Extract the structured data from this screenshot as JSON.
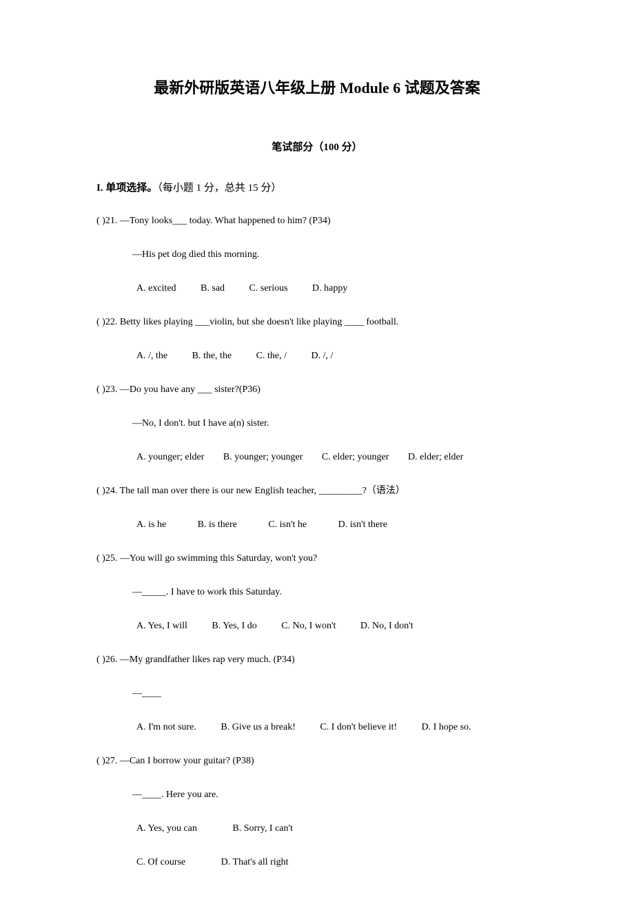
{
  "title": "最新外研版英语八年级上册 Module 6 试题及答案",
  "subtitle": "笔试部分（100 分）",
  "section": {
    "roman": "I.",
    "label": "单项选择。",
    "note": "（每小题 1 分，总共 15 分）"
  },
  "questions": [
    {
      "num": "(    )21.",
      "text": "—Tony looks___ today. What happened to him? (P34)",
      "sub": "—His pet dog died this morning.",
      "options": [
        "A. excited",
        "B. sad",
        "C. serious",
        "D. happy"
      ]
    },
    {
      "num": "(    )22.",
      "text": "Betty likes playing ___violin, but she doesn't like playing ____ football.",
      "options": [
        "A. /, the",
        "B. the, the",
        "C. the, /",
        "D. /, /"
      ]
    },
    {
      "num": "(    )23.",
      "text": "—Do you have any ___ sister?(P36)",
      "sub": "—No, I don't. but I have a(n) sister.",
      "options": [
        "A. younger; elder",
        "B. younger; younger",
        "C. elder; younger",
        "D. elder; elder"
      ]
    },
    {
      "num": "(    )24.",
      "text": "The tall man over there is our new English teacher, _________?（语法）",
      "options": [
        "A. is he",
        "B. is there",
        "C. isn't he",
        "D. isn't there"
      ]
    },
    {
      "num": "(    )25.",
      "text": "—You will go swimming this Saturday, won't you?",
      "sub": "—_____. I have to work this Saturday.",
      "options": [
        "A. Yes, I will",
        "B. Yes, I do",
        "C. No, I won't",
        "D. No, I don't"
      ]
    },
    {
      "num": "(    )26.",
      "text": "—My grandfather likes rap very much. (P34)",
      "sub": "—____",
      "options": [
        "A. I'm not sure.",
        "B. Give us a break!",
        "C. I don't believe it!",
        "D. I hope so."
      ]
    },
    {
      "num": "(    )27.",
      "text": "  —Can I borrow your guitar? (P38)",
      "sub": "—____. Here you are.",
      "options_2col": [
        [
          "A. Yes, you can",
          "B. Sorry, I can't"
        ],
        [
          "C. Of course",
          "D. That's all right"
        ]
      ]
    }
  ]
}
